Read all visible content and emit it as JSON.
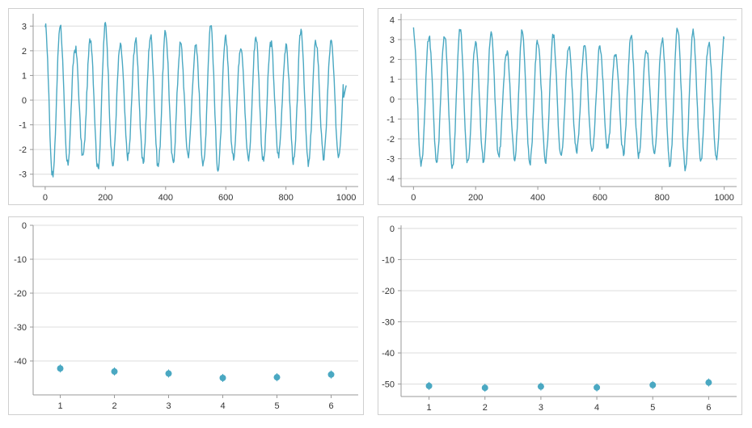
{
  "chart_data": [
    {
      "type": "line",
      "title": "",
      "xlabel": "",
      "ylabel": "",
      "xlim": [
        -40,
        1040
      ],
      "ylim": [
        -3.5,
        3.5
      ],
      "x_ticks": [
        0,
        200,
        400,
        600,
        800,
        1000
      ],
      "x_tick_labels": [
        "0",
        "200",
        "400",
        "600",
        "800",
        "1000"
      ],
      "y_ticks": [
        3,
        2,
        1,
        0,
        -1,
        -2,
        -3
      ],
      "y_tick_labels": [
        "3",
        "2",
        "1",
        "0",
        "-1",
        "-2",
        "-3"
      ],
      "grid": true,
      "color": "#4aa8c2",
      "signal": {
        "x_start": 0,
        "x_end": 1000,
        "period": 50,
        "amplitude_range": [
          2.0,
          3.2
        ]
      }
    },
    {
      "type": "line",
      "title": "",
      "xlabel": "",
      "ylabel": "",
      "xlim": [
        -40,
        1040
      ],
      "ylim": [
        -4.4,
        4.3
      ],
      "x_ticks": [
        0,
        200,
        400,
        600,
        800,
        1000
      ],
      "x_tick_labels": [
        "0",
        "200",
        "400",
        "600",
        "800",
        "1000"
      ],
      "y_ticks": [
        4,
        3,
        2,
        1,
        0,
        -1,
        -2,
        -3,
        -4
      ],
      "y_tick_labels": [
        "4",
        "3",
        "2",
        "1",
        "0",
        "-1",
        "-2",
        "-3",
        "-4"
      ],
      "grid": true,
      "color": "#4aa8c2",
      "signal": {
        "x_start": 0,
        "x_end": 1000,
        "period": 50,
        "amplitude_range": [
          2.2,
          3.6
        ]
      }
    },
    {
      "type": "scatter",
      "title": "",
      "xlabel": "",
      "ylabel": "",
      "xlim": [
        0.5,
        6.5
      ],
      "ylim": [
        -50,
        0
      ],
      "x_ticks": [
        1,
        2,
        3,
        4,
        5,
        6
      ],
      "x_tick_labels": [
        "1",
        "2",
        "3",
        "4",
        "5",
        "6"
      ],
      "y_ticks": [
        0,
        -10,
        -20,
        -30,
        -40
      ],
      "y_tick_labels": [
        "0",
        "-10",
        "-20",
        "-30",
        "-40"
      ],
      "grid": true,
      "color": "#4aa8c2",
      "x": [
        1,
        2,
        3,
        4,
        5,
        6
      ],
      "y": [
        -42.2,
        -43.1,
        -43.7,
        -45.0,
        -44.8,
        -44.0
      ]
    },
    {
      "type": "scatter",
      "title": "",
      "xlabel": "",
      "ylabel": "",
      "xlim": [
        0.5,
        6.5
      ],
      "ylim": [
        -54,
        1
      ],
      "x_ticks": [
        1,
        2,
        3,
        4,
        5,
        6
      ],
      "x_tick_labels": [
        "1",
        "2",
        "3",
        "4",
        "5",
        "6"
      ],
      "y_ticks": [
        0,
        -10,
        -20,
        -30,
        -40,
        -50
      ],
      "y_tick_labels": [
        "0",
        "-10",
        "-20",
        "-30",
        "-40",
        "-50"
      ],
      "grid": true,
      "color": "#4aa8c2",
      "x": [
        1,
        2,
        3,
        4,
        5,
        6
      ],
      "y": [
        -50.6,
        -51.2,
        -50.8,
        -51.1,
        -50.3,
        -49.5
      ]
    }
  ]
}
